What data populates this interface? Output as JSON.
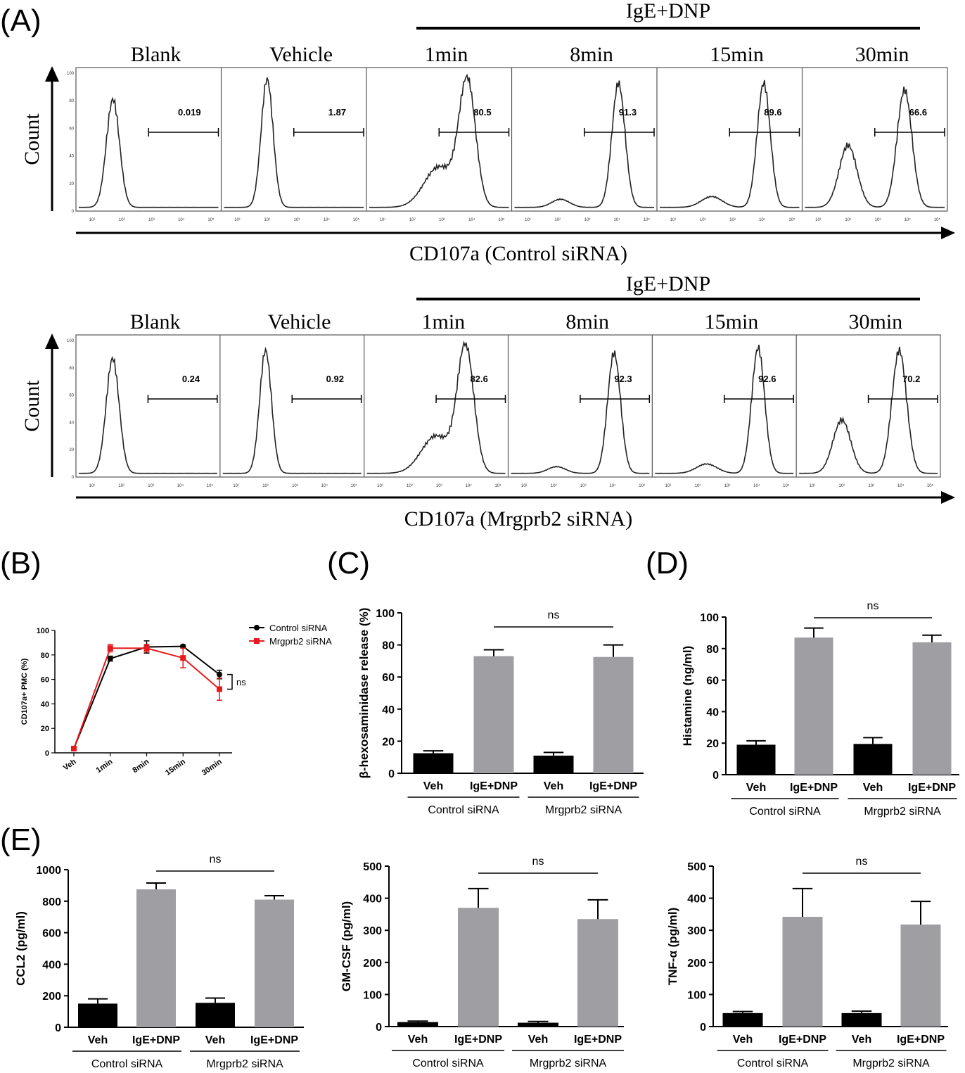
{
  "figure": {
    "panel_letters": {
      "A": "(A)",
      "B": "(B)",
      "C": "(C)",
      "D": "(D)",
      "E": "(E)"
    }
  },
  "chart_data": [
    {
      "id": "A-control",
      "type": "histogram",
      "treatment_label": "IgE+DNP",
      "ylabel": "Count",
      "xlabel": "CD107a (Control siRNA)",
      "yticks": [
        "0",
        "20",
        "40",
        "60",
        "80",
        "100"
      ],
      "xticks": [
        "10¹",
        "10²",
        "10³",
        "10⁴",
        "10⁵"
      ],
      "panels": [
        {
          "title": "Blank",
          "gate": "0.019",
          "peaks": [
            {
              "mu": 1.7,
              "sd": 0.22,
              "h": 80
            }
          ]
        },
        {
          "title": "Vehicle",
          "gate": "1.87",
          "peaks": [
            {
              "mu": 2.0,
              "sd": 0.2,
              "h": 95
            }
          ]
        },
        {
          "title": "1min",
          "gate": "80.5",
          "peaks": [
            {
              "mu": 3.85,
              "sd": 0.28,
              "h": 92
            },
            {
              "mu": 2.9,
              "sd": 0.5,
              "h": 30
            }
          ]
        },
        {
          "title": "8min",
          "gate": "91.3",
          "peaks": [
            {
              "mu": 4.05,
              "sd": 0.22,
              "h": 92
            },
            {
              "mu": 2.1,
              "sd": 0.3,
              "h": 6
            }
          ]
        },
        {
          "title": "15min",
          "gate": "89.6",
          "peaks": [
            {
              "mu": 4.05,
              "sd": 0.22,
              "h": 92
            },
            {
              "mu": 2.3,
              "sd": 0.35,
              "h": 8
            }
          ]
        },
        {
          "title": "30min",
          "gate": "66.6",
          "peaks": [
            {
              "mu": 3.9,
              "sd": 0.25,
              "h": 87
            },
            {
              "mu": 2.0,
              "sd": 0.3,
              "h": 46
            }
          ]
        }
      ]
    },
    {
      "id": "A-mrgprb2",
      "type": "histogram",
      "treatment_label": "IgE+DNP",
      "ylabel": "Count",
      "xlabel": "CD107a (Mrgprb2 siRNA)",
      "yticks": [
        "0",
        "20",
        "40",
        "60",
        "80",
        "100"
      ],
      "xticks": [
        "10¹",
        "10²",
        "10³",
        "10⁴",
        "10⁵"
      ],
      "panels": [
        {
          "title": "Blank",
          "gate": "0.24",
          "peaks": [
            {
              "mu": 1.7,
              "sd": 0.22,
              "h": 86
            }
          ]
        },
        {
          "title": "Vehicle",
          "gate": "0.92",
          "peaks": [
            {
              "mu": 2.0,
              "sd": 0.2,
              "h": 92
            }
          ]
        },
        {
          "title": "1min",
          "gate": "82.6",
          "peaks": [
            {
              "mu": 3.9,
              "sd": 0.28,
              "h": 94
            },
            {
              "mu": 2.9,
              "sd": 0.5,
              "h": 28
            }
          ]
        },
        {
          "title": "8min",
          "gate": "92.3",
          "peaks": [
            {
              "mu": 4.05,
              "sd": 0.22,
              "h": 90
            },
            {
              "mu": 2.1,
              "sd": 0.3,
              "h": 5
            }
          ]
        },
        {
          "title": "15min",
          "gate": "92.6",
          "peaks": [
            {
              "mu": 4.05,
              "sd": 0.22,
              "h": 94
            },
            {
              "mu": 2.3,
              "sd": 0.35,
              "h": 7
            }
          ]
        },
        {
          "title": "30min",
          "gate": "70.2",
          "peaks": [
            {
              "mu": 3.95,
              "sd": 0.25,
              "h": 92
            },
            {
              "mu": 2.0,
              "sd": 0.3,
              "h": 40
            }
          ]
        }
      ]
    },
    {
      "id": "B",
      "type": "line",
      "categories": [
        "Veh",
        "1min",
        "8min",
        "15min",
        "30min"
      ],
      "ylabel": "CD107a+ PMC (%)",
      "ylim": [
        0,
        100
      ],
      "yticks": [
        0,
        20,
        40,
        60,
        80,
        100
      ],
      "legend": "top-right",
      "annotation": "ns",
      "series": [
        {
          "name": "Control siRNA",
          "color": "#000000",
          "values": [
            3.5,
            77,
            86.5,
            87,
            64
          ],
          "errors": [
            0.5,
            2,
            5,
            1,
            3.5
          ]
        },
        {
          "name": "Mrgprb2 siRNA",
          "color": "#e8191c",
          "values": [
            3.5,
            85.5,
            85.5,
            77.5,
            52
          ],
          "errors": [
            0.5,
            3,
            3,
            8,
            9
          ]
        }
      ]
    },
    {
      "id": "C",
      "type": "bar",
      "ylabel": "β-hexosaminidase release (%)",
      "ylim": [
        0,
        100
      ],
      "yticks": [
        0,
        20,
        40,
        60,
        80,
        100
      ],
      "categories": [
        "Veh",
        "IgE+DNP",
        "Veh",
        "IgE+DNP"
      ],
      "groups": [
        "Control siRNA",
        "Mrgprb2 siRNA"
      ],
      "values": [
        12.5,
        73,
        11,
        72.5
      ],
      "errors": [
        1.5,
        4,
        2,
        7.5
      ],
      "colors": [
        "#000000",
        "#9e9ea3",
        "#000000",
        "#9e9ea3"
      ],
      "annotation": "ns"
    },
    {
      "id": "D",
      "type": "bar",
      "ylabel": "Histamine (ng/ml)",
      "ylim": [
        0,
        100
      ],
      "yticks": [
        0,
        20,
        40,
        60,
        80,
        100
      ],
      "categories": [
        "Veh",
        "IgE+DNP",
        "Veh",
        "IgE+DNP"
      ],
      "groups": [
        "Control siRNA",
        "Mrgprb2 siRNA"
      ],
      "values": [
        19,
        87,
        19.5,
        84
      ],
      "errors": [
        2.5,
        6,
        4,
        4.5
      ],
      "colors": [
        "#000000",
        "#9e9ea3",
        "#000000",
        "#9e9ea3"
      ],
      "annotation": "ns"
    },
    {
      "id": "E1",
      "type": "bar",
      "ylabel": "CCL2 (pg/ml)",
      "ylim": [
        0,
        1000
      ],
      "yticks": [
        0,
        200,
        400,
        600,
        800,
        1000
      ],
      "categories": [
        "Veh",
        "IgE+DNP",
        "Veh",
        "IgE+DNP"
      ],
      "groups": [
        "Control siRNA",
        "Mrgprb2 siRNA"
      ],
      "values": [
        150,
        875,
        155,
        810
      ],
      "errors": [
        30,
        40,
        30,
        25
      ],
      "colors": [
        "#000000",
        "#9e9ea3",
        "#000000",
        "#9e9ea3"
      ],
      "annotation": "ns"
    },
    {
      "id": "E2",
      "type": "bar",
      "ylabel": "GM-CSF (pg/ml)",
      "ylim": [
        0,
        500
      ],
      "yticks": [
        0,
        100,
        200,
        300,
        400,
        500
      ],
      "categories": [
        "Veh",
        "IgE+DNP",
        "Veh",
        "IgE+DNP"
      ],
      "groups": [
        "Control siRNA",
        "Mrgprb2 siRNA"
      ],
      "values": [
        14,
        370,
        12,
        335
      ],
      "errors": [
        3,
        60,
        4,
        60
      ],
      "colors": [
        "#000000",
        "#9e9ea3",
        "#000000",
        "#9e9ea3"
      ],
      "annotation": "ns"
    },
    {
      "id": "E3",
      "type": "bar",
      "ylabel": "TNF-α (pg/ml)",
      "ylim": [
        0,
        500
      ],
      "yticks": [
        0,
        100,
        200,
        300,
        400,
        500
      ],
      "categories": [
        "Veh",
        "IgE+DNP",
        "Veh",
        "IgE+DNP"
      ],
      "groups": [
        "Control siRNA",
        "Mrgprb2 siRNA"
      ],
      "values": [
        42,
        342,
        42,
        318
      ],
      "errors": [
        5,
        88,
        6,
        72
      ],
      "colors": [
        "#000000",
        "#9e9ea3",
        "#000000",
        "#9e9ea3"
      ],
      "annotation": "ns"
    }
  ]
}
